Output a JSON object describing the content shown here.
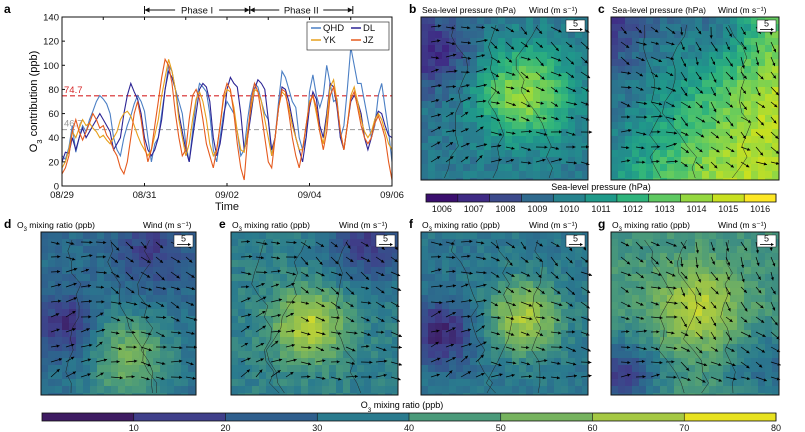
{
  "figure": {
    "panel_labels": [
      "a",
      "b",
      "c",
      "d",
      "e",
      "f",
      "g"
    ],
    "slp_colorbar_label": "Sea-level pressure (hPa)",
    "o3_colorbar_label": "O3 mixing ratio (ppb)",
    "map_title_slp": "Sea-level pressure (hPa)",
    "map_title_o3": "O3 mixing ratio (ppb)",
    "map_title_wind": "Wind (m s⁻¹)",
    "wind_scale_label": "5"
  },
  "chart_data": {
    "type": "line",
    "xlabel": "Time",
    "ylabel": "O3 contribution (ppb)",
    "ylim": [
      0,
      140
    ],
    "y_ticks": [
      0,
      20,
      40,
      60,
      80,
      100,
      120,
      140
    ],
    "x_ticks": [
      "08/29",
      "08/31",
      "09/02",
      "09/04",
      "09/06"
    ],
    "x_tick_days": [
      0,
      2,
      4,
      6,
      8
    ],
    "xlim_days": [
      0,
      8
    ],
    "legend_position": "top-right",
    "phases": [
      {
        "name": "Phase I",
        "start_day": 2.0,
        "end_day": 4.55
      },
      {
        "name": "Phase II",
        "start_day": 4.55,
        "end_day": 7.05
      }
    ],
    "reference_lines": [
      {
        "value": 74.7,
        "label": "74.7",
        "color": "#d62728",
        "style": "dashed"
      },
      {
        "value": 46.7,
        "label": "46.7",
        "color": "#999999",
        "style": "dashed"
      }
    ],
    "series_colors": {
      "QHD": "#4b7fc4",
      "DL": "#2c2494",
      "YK": "#e7a01c",
      "JZ": "#e55a1e"
    },
    "series": [
      {
        "name": "QHD",
        "values": [
          25,
          22,
          32,
          50,
          28,
          40,
          50,
          45,
          55,
          62,
          70,
          75,
          72,
          68,
          60,
          40,
          30,
          25,
          40,
          50,
          58,
          68,
          75,
          70,
          62,
          40,
          20,
          35,
          40,
          60,
          80,
          100,
          95,
          80,
          70,
          60,
          35,
          20,
          45,
          70,
          85,
          82,
          78,
          60,
          30,
          20,
          40,
          60,
          70,
          65,
          60,
          45,
          25,
          30,
          55,
          75,
          85,
          82,
          70,
          60,
          55,
          25,
          40,
          70,
          95,
          90,
          80,
          70,
          65,
          40,
          30,
          40,
          78,
          92,
          75,
          65,
          75,
          100,
          85,
          70,
          72,
          40,
          50,
          80,
          115,
          100,
          85,
          85,
          70,
          55,
          40,
          50,
          75,
          85,
          65,
          45,
          20
        ]
      },
      {
        "name": "DL",
        "values": [
          20,
          28,
          27,
          40,
          30,
          40,
          48,
          40,
          45,
          50,
          55,
          60,
          55,
          50,
          45,
          30,
          35,
          40,
          60,
          75,
          85,
          78,
          72,
          60,
          40,
          30,
          25,
          30,
          40,
          55,
          80,
          95,
          90,
          80,
          60,
          45,
          30,
          20,
          40,
          60,
          80,
          85,
          82,
          70,
          40,
          25,
          35,
          55,
          80,
          90,
          85,
          82,
          60,
          30,
          40,
          60,
          80,
          88,
          85,
          80,
          55,
          30,
          40,
          65,
          82,
          80,
          70,
          55,
          40,
          30,
          20,
          40,
          65,
          78,
          72,
          50,
          40,
          60,
          85,
          82,
          65,
          40,
          30,
          50,
          70,
          75,
          70,
          60,
          40,
          30,
          40,
          55,
          62,
          60,
          50,
          42,
          40
        ]
      },
      {
        "name": "YK",
        "values": [
          15,
          20,
          30,
          45,
          40,
          48,
          55,
          50,
          52,
          48,
          45,
          40,
          42,
          38,
          35,
          40,
          45,
          55,
          60,
          62,
          58,
          50,
          42,
          35,
          30,
          25,
          30,
          42,
          55,
          75,
          90,
          105,
          95,
          80,
          55,
          40,
          25,
          35,
          55,
          72,
          78,
          70,
          55,
          35,
          25,
          30,
          50,
          72,
          80,
          78,
          65,
          45,
          30,
          28,
          45,
          65,
          80,
          78,
          70,
          55,
          40,
          25,
          40,
          65,
          78,
          75,
          65,
          50,
          40,
          30,
          30,
          50,
          70,
          75,
          60,
          45,
          35,
          55,
          82,
          88,
          70,
          45,
          30,
          50,
          75,
          82,
          70,
          55,
          45,
          40,
          45,
          55,
          60,
          55,
          45,
          35,
          30
        ]
      },
      {
        "name": "JZ",
        "values": [
          10,
          15,
          25,
          45,
          55,
          45,
          38,
          45,
          52,
          60,
          55,
          48,
          50,
          42,
          38,
          30,
          25,
          15,
          10,
          20,
          40,
          60,
          70,
          55,
          35,
          20,
          30,
          50,
          70,
          90,
          105,
          100,
          85,
          60,
          40,
          25,
          30,
          55,
          75,
          80,
          72,
          55,
          35,
          25,
          15,
          30,
          50,
          75,
          85,
          80,
          60,
          35,
          15,
          5,
          40,
          70,
          85,
          78,
          60,
          40,
          20,
          15,
          40,
          65,
          80,
          78,
          60,
          40,
          25,
          15,
          30,
          50,
          68,
          75,
          65,
          45,
          30,
          45,
          75,
          82,
          68,
          45,
          30,
          50,
          72,
          78,
          65,
          50,
          40,
          35,
          40,
          52,
          58,
          50,
          40,
          20,
          5
        ]
      }
    ]
  },
  "colorbars": {
    "slp": {
      "tick_labels": [
        "1006",
        "1007",
        "1008",
        "1009",
        "1010",
        "1011",
        "1012",
        "1013",
        "1014",
        "1015",
        "1016"
      ],
      "colors": [
        "#3b0f6f",
        "#3f2a85",
        "#3c4a8c",
        "#2f6a8e",
        "#26838e",
        "#1f9a8a",
        "#2fb47c",
        "#5ec962",
        "#95d840",
        "#c8e020",
        "#fde725"
      ]
    },
    "o3": {
      "tick_labels": [
        "10",
        "20",
        "30",
        "40",
        "50",
        "60",
        "70",
        "80"
      ],
      "colors": [
        "#3e1b62",
        "#3f3f8a",
        "#2f5f8d",
        "#2a7b8e",
        "#4a9a7a",
        "#76b35e",
        "#a5c843",
        "#e8e21f"
      ]
    }
  },
  "maps": [
    {
      "panel": "b",
      "variable": "slp",
      "pattern": "low-northwest-high-center"
    },
    {
      "panel": "c",
      "variable": "slp",
      "pattern": "low-north-high-southeast"
    },
    {
      "panel": "d",
      "variable": "o3",
      "pattern": "d"
    },
    {
      "panel": "e",
      "variable": "o3",
      "pattern": "e"
    },
    {
      "panel": "f",
      "variable": "o3",
      "pattern": "f"
    },
    {
      "panel": "g",
      "variable": "o3",
      "pattern": "g"
    }
  ]
}
